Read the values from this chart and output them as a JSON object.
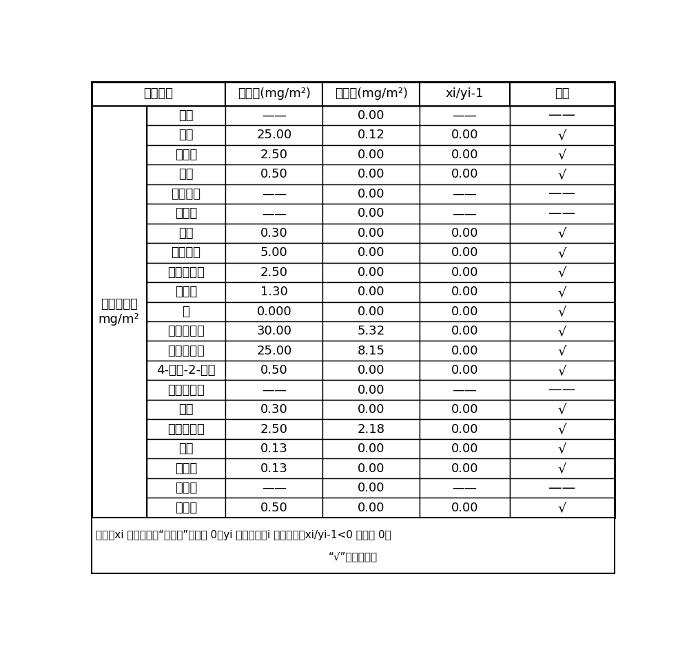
{
  "header_col01": "检测项目",
  "header_col2": "指标值(mg/m²)",
  "header_col3": "检测值(mg/m²)",
  "header_col4": "xi/yi-1",
  "header_col5": "判断",
  "left_label_line1": "溶剂残留量",
  "left_label_line2": "mg/m²",
  "rows": [
    [
      "甲醇",
      "——",
      "0.00",
      "——",
      "——"
    ],
    [
      "乙醇",
      "25.00",
      "0.12",
      "0.00",
      "√"
    ],
    [
      "异丙醇",
      "2.50",
      "0.00",
      "0.00",
      "√"
    ],
    [
      "丙酮",
      "0.50",
      "0.00",
      "0.00",
      "√"
    ],
    [
      "乙酸甲酩",
      "——",
      "0.00",
      "——",
      "——"
    ],
    [
      "正丙醇",
      "——",
      "0.00",
      "——",
      "——"
    ],
    [
      "丁酮",
      "0.30",
      "0.00",
      "0.00",
      "√"
    ],
    [
      "乙酸乙酩",
      "5.00",
      "0.00",
      "0.00",
      "√"
    ],
    [
      "乙酸异丙酩",
      "2.50",
      "0.00",
      "0.00",
      "√"
    ],
    [
      "正丁醇",
      "1.30",
      "0.00",
      "0.00",
      "√"
    ],
    [
      "苯",
      "0.000",
      "0.00",
      "0.00",
      "√"
    ],
    [
      "丙二醇甲醚",
      "30.00",
      "5.32",
      "0.00",
      "√"
    ],
    [
      "乙酸正丙酩",
      "25.00",
      "8.15",
      "0.00",
      "√"
    ],
    [
      "4-甲基-2-戚酮",
      "0.50",
      "0.00",
      "0.00",
      "√"
    ],
    [
      "丙二醇乙醚",
      "——",
      "0.00",
      "——",
      "——"
    ],
    [
      "甲苯",
      "0.30",
      "0.00",
      "0.00",
      "√"
    ],
    [
      "乙酸正丁酩",
      "2.50",
      "2.18",
      "0.00",
      "√"
    ],
    [
      "乙苯",
      "0.13",
      "0.00",
      "0.00",
      "√"
    ],
    [
      "二甲苯",
      "0.13",
      "0.00",
      "0.00",
      "√"
    ],
    [
      "苯乙烯",
      "——",
      "0.00",
      "——",
      "——"
    ],
    [
      "环己酮",
      "0.50",
      "0.00",
      "0.00",
      "√"
    ]
  ],
  "footnote_line1": "备注：xi 为检测值，“未检出”取值为 0；yi 为指标值，i 表示序号；xi/yi-1<0 取值为 0；",
  "footnote_line2": "“√”表示合格。",
  "bg_color": "#ffffff",
  "border_color": "#000000",
  "font_size": 13,
  "font_size_small": 11
}
